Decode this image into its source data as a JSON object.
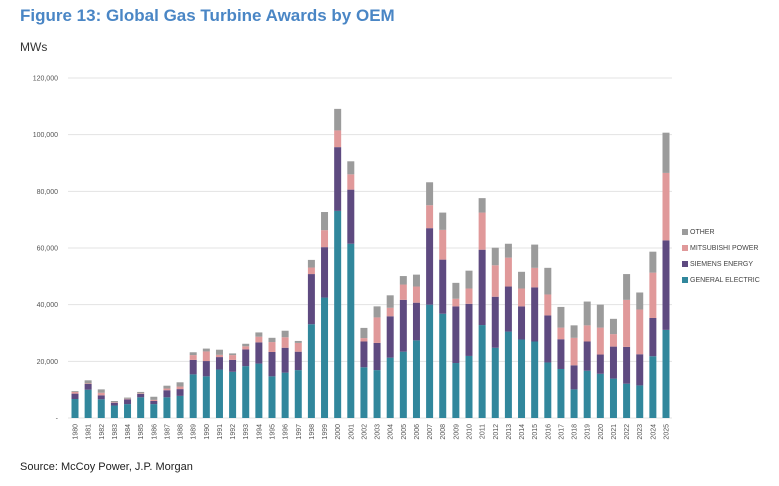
{
  "title": "Figure 13: Global Gas Turbine Awards by OEM",
  "source": "Source: McCoy Power, J.P. Morgan",
  "chart_data": {
    "type": "bar",
    "stacked": true,
    "title": "Figure 13: Global Gas Turbine Awards by OEM",
    "ylabel": "MWs",
    "xlabel": "",
    "ylim": [
      0,
      120000
    ],
    "yticks": [
      0,
      20000,
      40000,
      60000,
      80000,
      100000,
      120000
    ],
    "ytick_labels": [
      "-",
      "20,000",
      "40,000",
      "60,000",
      "80,000",
      "100,000",
      "120,000"
    ],
    "grid": true,
    "legend_position": "right",
    "categories": [
      "1980",
      "1981",
      "1982",
      "1983",
      "1984",
      "1985",
      "1986",
      "1987",
      "1988",
      "1989",
      "1990",
      "1991",
      "1992",
      "1993",
      "1994",
      "1995",
      "1996",
      "1997",
      "1998",
      "1999",
      "2000",
      "2001",
      "2002",
      "2003",
      "2004",
      "2005",
      "2006",
      "2007",
      "2008",
      "2009",
      "2010",
      "2011",
      "2012",
      "2013",
      "2014",
      "2015",
      "2016",
      "2017",
      "2018",
      "2019",
      "2020",
      "2021",
      "2022",
      "2023",
      "2024",
      "2025"
    ],
    "series": [
      {
        "name": "GENERAL ELECTRIC",
        "color": "#31879c",
        "values": [
          6700,
          10000,
          6600,
          4400,
          4900,
          7300,
          4900,
          7300,
          7800,
          15400,
          14700,
          17100,
          16300,
          18300,
          19200,
          14700,
          16000,
          16900,
          33100,
          42500,
          73100,
          61500,
          17900,
          16900,
          21300,
          23400,
          27400,
          40000,
          36800,
          19400,
          21900,
          32800,
          24800,
          30500,
          27700,
          27000,
          19600,
          17300,
          10100,
          16700,
          15600,
          13900,
          12100,
          11500,
          21800,
          31100
        ]
      },
      {
        "name": "SIEMENS ENERGY",
        "color": "#5e4a80",
        "values": [
          1900,
          2000,
          1400,
          1000,
          1700,
          1200,
          1100,
          2500,
          2400,
          5100,
          5400,
          4400,
          4200,
          5900,
          7500,
          8600,
          8800,
          6500,
          17700,
          17800,
          22500,
          19100,
          9100,
          9600,
          14600,
          18300,
          13300,
          27000,
          19100,
          20000,
          18400,
          26600,
          18000,
          15900,
          11700,
          19100,
          16600,
          10500,
          8500,
          10300,
          6800,
          11300,
          13000,
          11000,
          13500,
          31600
        ]
      },
      {
        "name": "MITSUBISHI POWER",
        "color": "#e0999a",
        "values": [
          600,
          200,
          900,
          200,
          200,
          200,
          400,
          600,
          900,
          1700,
          3400,
          800,
          1700,
          1100,
          2000,
          3500,
          3700,
          3100,
          2300,
          6000,
          5900,
          5400,
          1200,
          9000,
          3000,
          5400,
          5700,
          8100,
          10500,
          2700,
          5400,
          13100,
          11100,
          10200,
          6300,
          6900,
          7400,
          4100,
          9700,
          5700,
          9500,
          4400,
          16600,
          15800,
          16000,
          23800
        ]
      },
      {
        "name": "OTHER",
        "color": "#9b9b9b",
        "values": [
          300,
          1100,
          1200,
          400,
          400,
          500,
          1100,
          1000,
          1500,
          1000,
          1000,
          1800,
          600,
          900,
          1500,
          1500,
          2300,
          700,
          2700,
          6400,
          7600,
          4600,
          3600,
          3900,
          4400,
          3000,
          4200,
          8100,
          6100,
          5600,
          6300,
          5100,
          6200,
          4900,
          5900,
          8200,
          9400,
          7300,
          4400,
          8400,
          8100,
          5400,
          9100,
          6000,
          7400,
          14200
        ]
      }
    ]
  }
}
